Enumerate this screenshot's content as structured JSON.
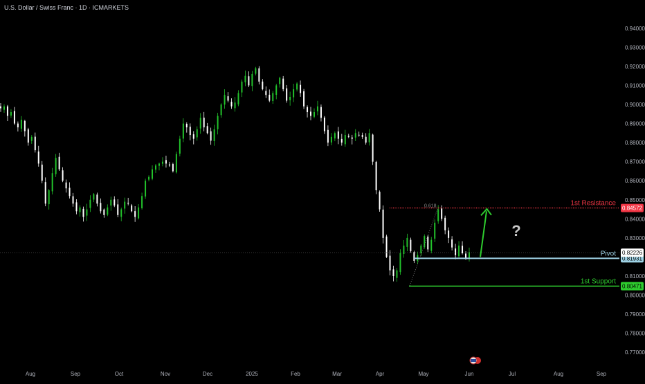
{
  "header": {
    "title": "U.S. Dollar / Swiss Franc · 1D · ICMARKETS"
  },
  "chart_data": {
    "type": "candlestick",
    "title": "U.S. Dollar / Swiss Franc · 1D · ICMARKETS",
    "ylim": [
      0.765,
      0.945
    ],
    "y_ticks": [
      0.94,
      0.93,
      0.92,
      0.91,
      0.9,
      0.89,
      0.88,
      0.87,
      0.86,
      0.85,
      0.84,
      0.83,
      0.81,
      0.8,
      0.79,
      0.78,
      0.77
    ],
    "x_ticks": [
      "Aug",
      "Sep",
      "Oct",
      "Nov",
      "Dec",
      "2025",
      "Feb",
      "Mar",
      "Apr",
      "May",
      "Jun",
      "Jul",
      "Aug",
      "Sep"
    ],
    "colors": {
      "up": "#22c32b",
      "down": "#ffffff",
      "resistance": "#f23645",
      "pivot": "#9fd3e6",
      "support": "#2ecc2e",
      "last_price_bg": "#ffffff"
    },
    "trend_path": [
      [
        0.898,
        0.899,
        0.894,
        0.896,
        0.89,
        0.888
      ],
      [
        0.892,
        0.886,
        0.88,
        0.883,
        0.876,
        0.869
      ],
      [
        0.86,
        0.848,
        0.855,
        0.864,
        0.872,
        0.866
      ],
      [
        0.86,
        0.856,
        0.852,
        0.848,
        0.844,
        0.846
      ],
      [
        0.841,
        0.845,
        0.85,
        0.853,
        0.848,
        0.844
      ],
      [
        0.842,
        0.846,
        0.85,
        0.847,
        0.842,
        0.845
      ],
      [
        0.849,
        0.848,
        0.844,
        0.841,
        0.846,
        0.852
      ],
      [
        0.86,
        0.862,
        0.866,
        0.868,
        0.869,
        0.87
      ],
      [
        0.869,
        0.868,
        0.865,
        0.874,
        0.882,
        0.89
      ],
      [
        0.888,
        0.884,
        0.882,
        0.887,
        0.893,
        0.888
      ],
      [
        0.885,
        0.881,
        0.887,
        0.894,
        0.9,
        0.905
      ],
      [
        0.902,
        0.899,
        0.901,
        0.906,
        0.912,
        0.915
      ],
      [
        0.91,
        0.916,
        0.919,
        0.912,
        0.908,
        0.905
      ],
      [
        0.902,
        0.906,
        0.91,
        0.914,
        0.908,
        0.902
      ],
      [
        0.904,
        0.908,
        0.911,
        0.906,
        0.899,
        0.896
      ],
      [
        0.894,
        0.896,
        0.899,
        0.893,
        0.886,
        0.88
      ],
      [
        0.883,
        0.885,
        0.882,
        0.88,
        0.884,
        0.883
      ],
      [
        0.882,
        0.885,
        0.884,
        0.883,
        0.88,
        0.885
      ],
      [
        0.87,
        0.855,
        0.845,
        0.83,
        0.82,
        0.813
      ],
      [
        0.81,
        0.813,
        0.822,
        0.826,
        0.83,
        0.823
      ],
      [
        0.818,
        0.821,
        0.826,
        0.831,
        0.824,
        0.829
      ],
      [
        0.838,
        0.845,
        0.84,
        0.834,
        0.83,
        0.825
      ],
      [
        0.821,
        0.826,
        0.822,
        0.819,
        0.8226
      ]
    ],
    "levels": [
      {
        "label": "1st Resistance",
        "value": 0.84572,
        "value_label": "0.84572"
      },
      {
        "label": "Pivot",
        "value": 0.81931,
        "value_label": "0.81931"
      },
      {
        "label": "1st Support",
        "value": 0.80471,
        "value_label": "0.80471"
      }
    ],
    "last_price": {
      "value": 0.82226,
      "label": "0.82226"
    },
    "fib_label": "0.618",
    "annotation": "?"
  }
}
